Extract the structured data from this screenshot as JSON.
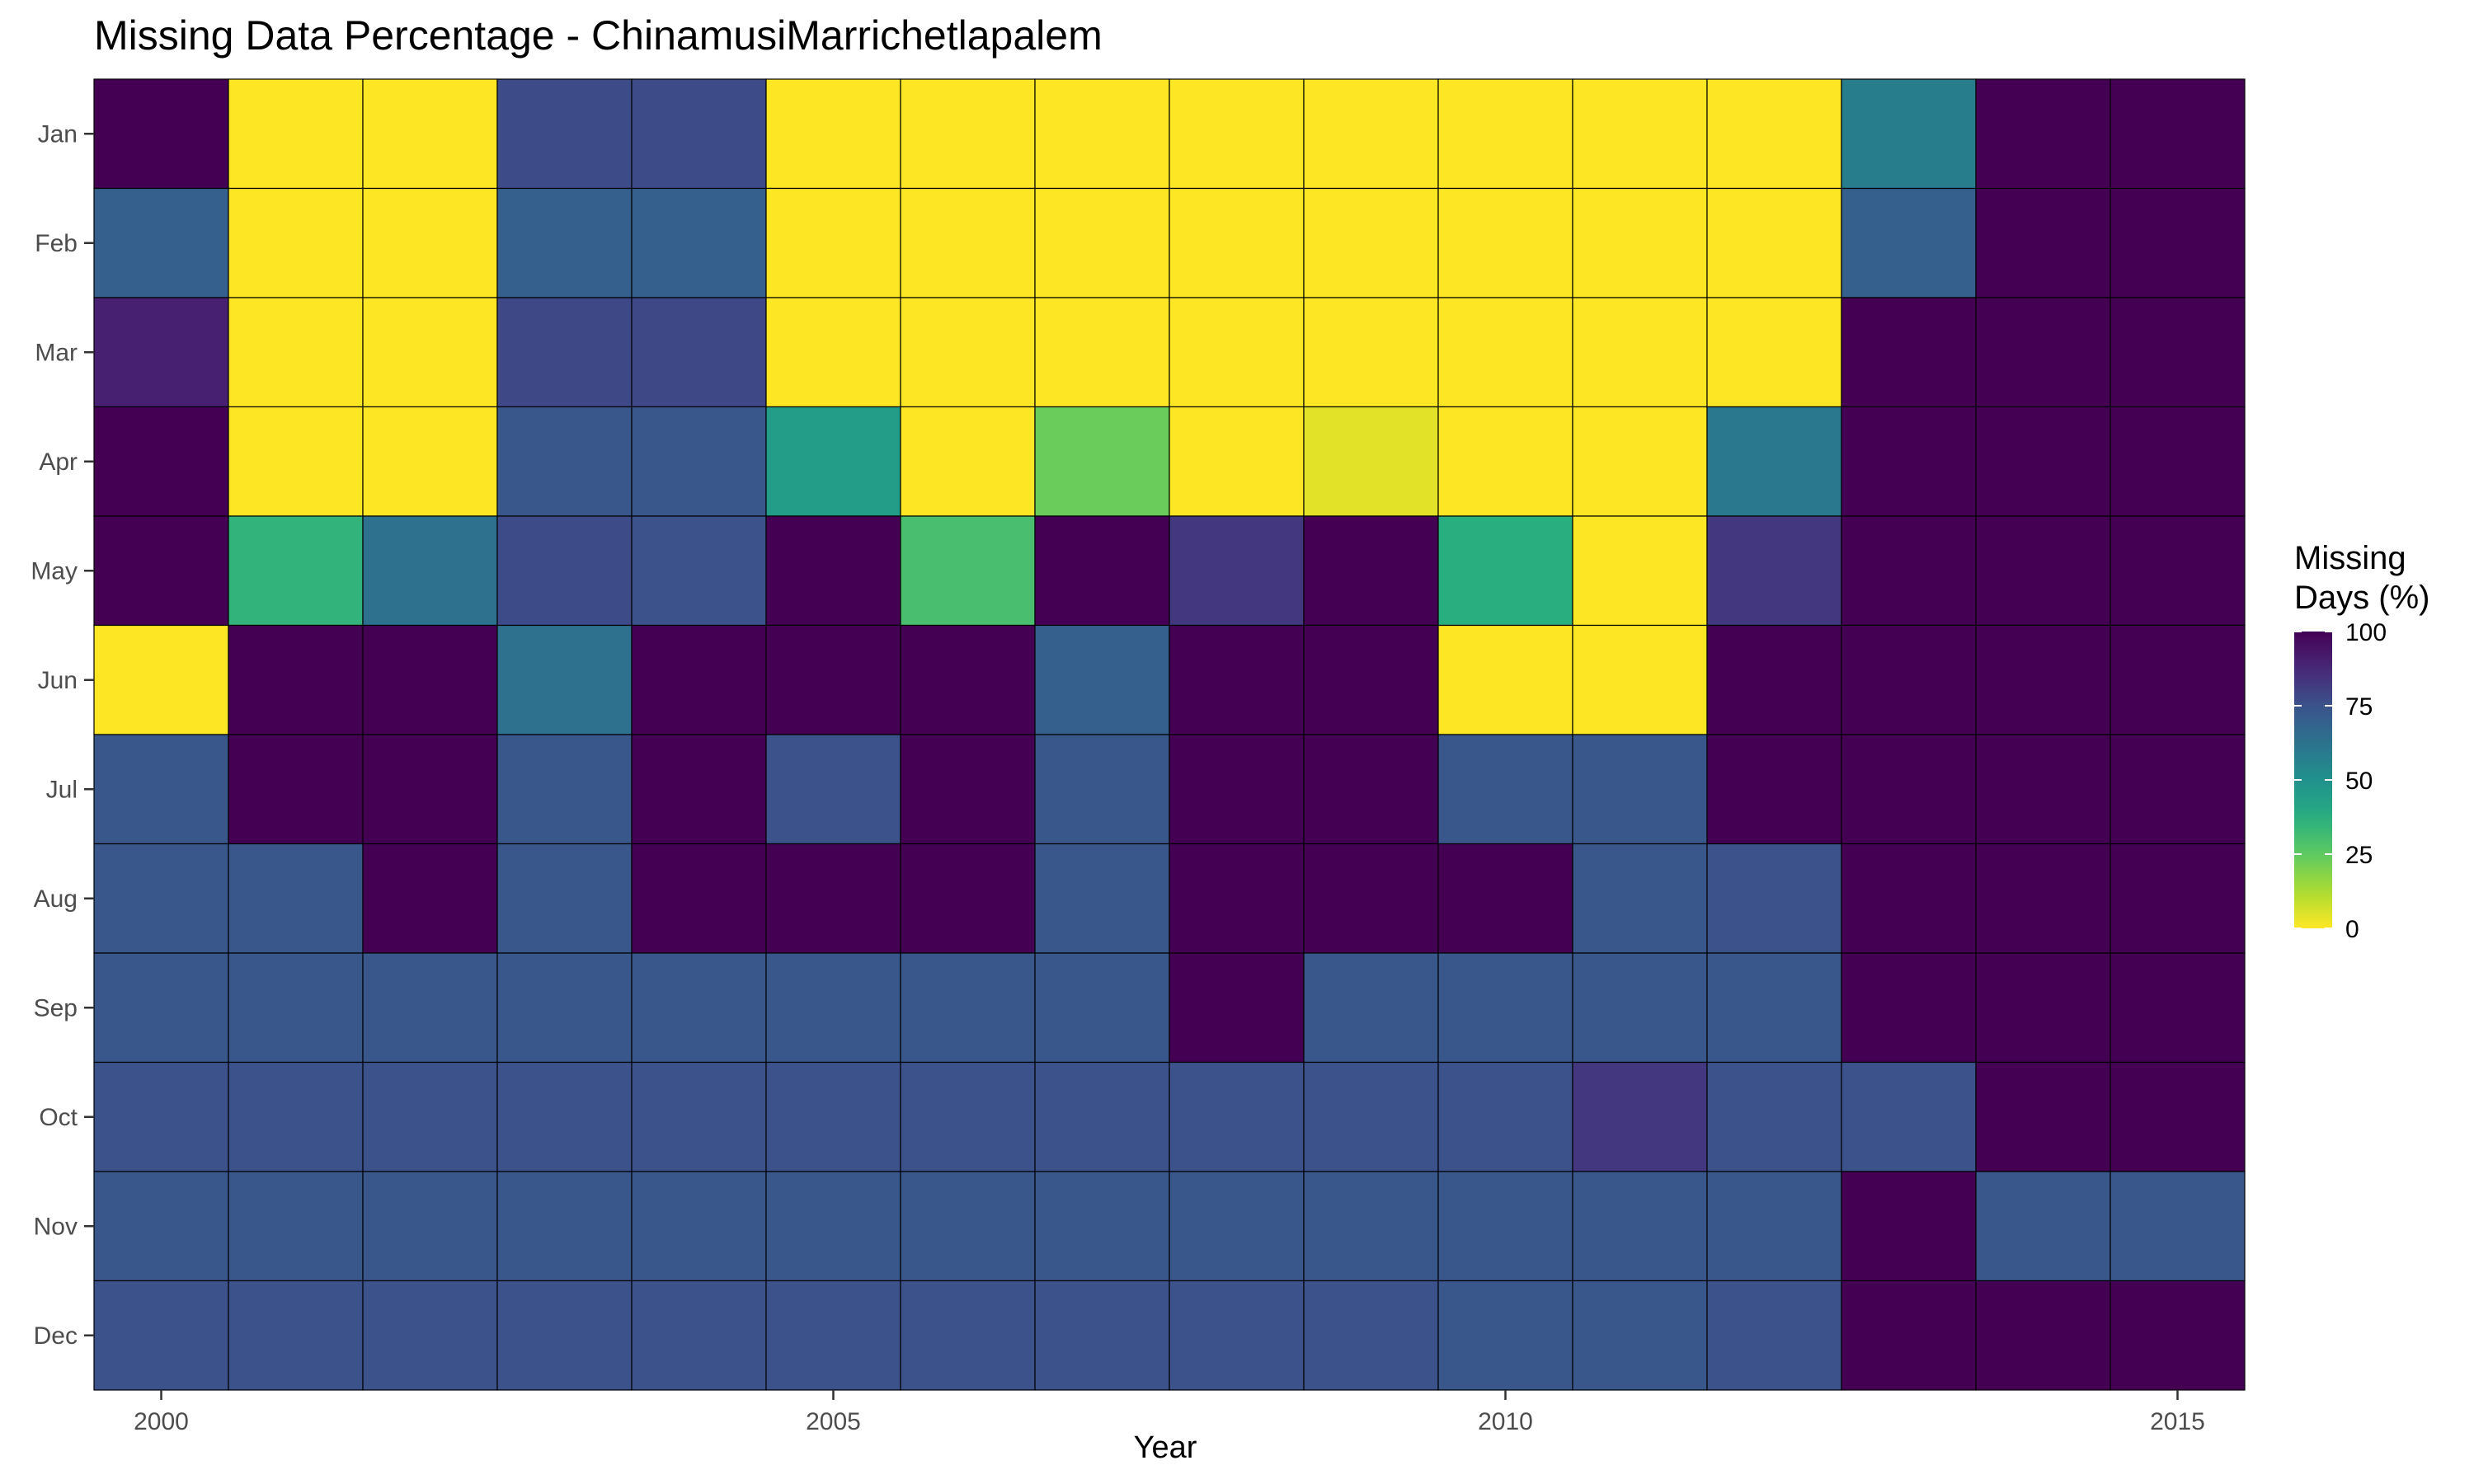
{
  "chart_data": {
    "type": "heatmap",
    "title": "Missing Data Percentage - ChinamusiMarrichetlapalem",
    "xlabel": "Year",
    "ylabel": "",
    "x": [
      2000,
      2001,
      2002,
      2003,
      2004,
      2005,
      2006,
      2007,
      2008,
      2009,
      2010,
      2011,
      2012,
      2013,
      2014,
      2015
    ],
    "x_ticks": [
      "2000",
      "2005",
      "2010",
      "2015"
    ],
    "x_tick_values": [
      2000,
      2005,
      2010,
      2015
    ],
    "y": [
      "Jan",
      "Feb",
      "Mar",
      "Apr",
      "May",
      "Jun",
      "Jul",
      "Aug",
      "Sep",
      "Oct",
      "Nov",
      "Dec"
    ],
    "values": [
      [
        100,
        0,
        0,
        77,
        77,
        0,
        0,
        0,
        0,
        0,
        0,
        0,
        0,
        58,
        100,
        100
      ],
      [
        70,
        0,
        0,
        70,
        70,
        0,
        0,
        0,
        0,
        0,
        0,
        0,
        0,
        70,
        100,
        100
      ],
      [
        90,
        0,
        0,
        78,
        78,
        0,
        0,
        0,
        0,
        0,
        0,
        0,
        0,
        100,
        100,
        100
      ],
      [
        100,
        0,
        0,
        73,
        73,
        45,
        0,
        23,
        0,
        4,
        0,
        0,
        60,
        100,
        100,
        100
      ],
      [
        100,
        35,
        63,
        77,
        75,
        100,
        30,
        100,
        83,
        100,
        37,
        0,
        83,
        100,
        100,
        100
      ],
      [
        0,
        100,
        100,
        63,
        100,
        100,
        100,
        70,
        100,
        100,
        0,
        0,
        100,
        100,
        100,
        100
      ],
      [
        73,
        100,
        100,
        73,
        100,
        75,
        100,
        73,
        100,
        100,
        73,
        73,
        100,
        100,
        100,
        100
      ],
      [
        73,
        73,
        100,
        73,
        100,
        100,
        100,
        73,
        100,
        100,
        100,
        73,
        75,
        100,
        100,
        100
      ],
      [
        73,
        73,
        73,
        73,
        73,
        73,
        73,
        73,
        100,
        73,
        73,
        73,
        73,
        100,
        100,
        100
      ],
      [
        75,
        75,
        75,
        75,
        75,
        75,
        75,
        75,
        75,
        75,
        75,
        83,
        75,
        75,
        100,
        100
      ],
      [
        73,
        73,
        73,
        73,
        73,
        73,
        73,
        73,
        73,
        73,
        73,
        73,
        73,
        100,
        73,
        73
      ],
      [
        75,
        75,
        75,
        75,
        75,
        75,
        75,
        75,
        75,
        75,
        73,
        73,
        75,
        100,
        100,
        100
      ]
    ],
    "colorscale": "viridis-reversed",
    "color_range": [
      0,
      100
    ],
    "legend": {
      "title_line1": "Missing",
      "title_line2": "Days (%)",
      "ticks": [
        "100",
        "75",
        "50",
        "25",
        "0"
      ],
      "tick_values": [
        100,
        75,
        50,
        25,
        0
      ],
      "placement": "right"
    },
    "grid": false
  }
}
